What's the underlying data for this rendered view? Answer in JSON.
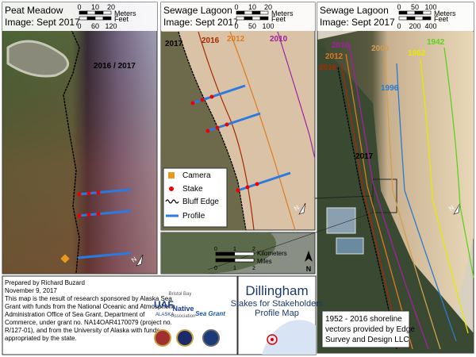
{
  "panels": [
    {
      "title": "Peat Meadow",
      "image": "Image: Sept 2017",
      "north": "N",
      "scale": {
        "meters": [
          "0",
          "10",
          "20"
        ],
        "meters_unit": "Meters",
        "feet": [
          "0",
          "60",
          "120"
        ],
        "feet_unit": "Feet"
      },
      "labels": [
        "2016 / 2017"
      ]
    },
    {
      "title": "Sewage Lagoon",
      "image": "Image: Sept 2017",
      "north": "N",
      "scale": {
        "meters": [
          "0",
          "10",
          "20"
        ],
        "meters_unit": "Meters",
        "feet": [
          "0",
          "50",
          "100"
        ],
        "feet_unit": "Feet"
      },
      "labels": [
        "2017",
        "2016",
        "2012",
        "2010"
      ]
    },
    {
      "title": "Sewage Lagoon",
      "image": "Image: Sept 2017",
      "north": "N",
      "scale": {
        "meters": [
          "0",
          "50",
          "100"
        ],
        "meters_unit": "Meters",
        "feet": [
          "0",
          "200",
          "400"
        ],
        "feet_unit": "Feet"
      },
      "labels": [
        "2010",
        "2012",
        "2016",
        "2000",
        "1996",
        "1962",
        "1942",
        "2017"
      ],
      "note": [
        "1952 - 2016 shoreline",
        "vectors provided by Edge",
        "Survey and Design LLC"
      ]
    }
  ],
  "legend": [
    "Camera",
    "Stake",
    "Bluff Edge",
    "Profile"
  ],
  "inset": {
    "km": [
      "0",
      "1",
      "2"
    ],
    "km_unit": "Kilometers",
    "mi": [
      "0",
      "1",
      "2"
    ],
    "mi_unit": "Miles",
    "north": "N"
  },
  "footer": {
    "prepared": "Prepared by Richard Buzard",
    "date": "November 9, 2017",
    "text": [
      "This map is the result of research sponsored by Alaska Sea",
      "Grant with funds from the National Oceanic and Atmospheric",
      "Administration Office of Sea Grant, Department of",
      "Commerce, under grant no. NA14OAR4170079 (project no.",
      "R/127-01), and from the University of Alaska with funds",
      "appropriated by the state."
    ],
    "logos": [
      "UAF",
      "ALASKA",
      "Bristol Bay",
      "Native",
      "Association",
      "Sea Grant"
    ]
  },
  "title": {
    "main": "Dillingham",
    "subtitle": "Stakes for Stakeholders",
    "sub2": "Profile Map"
  }
}
